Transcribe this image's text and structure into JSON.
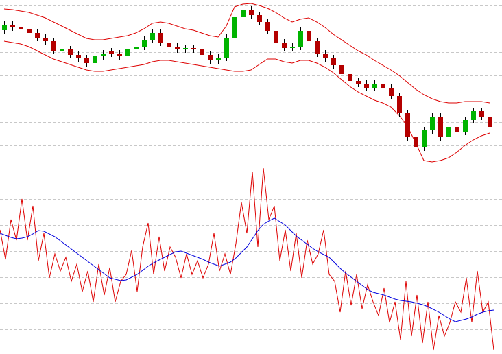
{
  "chart_data": [
    {
      "type": "candlestick",
      "ylim": [
        0,
        238
      ],
      "yticks": [
        230,
        196,
        162,
        128,
        94,
        60,
        26
      ],
      "grid": true,
      "up_color": "#00b400",
      "down_color": "#b40000",
      "ohlc": [
        [
          194,
          207,
          189,
          202
        ],
        [
          202,
          207,
          193,
          198
        ],
        [
          198,
          203,
          191,
          196
        ],
        [
          196,
          201,
          185,
          190
        ],
        [
          190,
          195,
          178,
          183
        ],
        [
          183,
          188,
          173,
          178
        ],
        [
          178,
          183,
          159,
          164
        ],
        [
          164,
          171,
          159,
          166
        ],
        [
          166,
          171,
          153,
          158
        ],
        [
          158,
          163,
          148,
          153
        ],
        [
          153,
          158,
          141,
          146
        ],
        [
          146,
          161,
          141,
          156
        ],
        [
          156,
          165,
          151,
          160
        ],
        [
          163,
          168,
          155,
          160
        ],
        [
          160,
          165,
          151,
          156
        ],
        [
          156,
          171,
          151,
          166
        ],
        [
          166,
          175,
          161,
          170
        ],
        [
          170,
          185,
          165,
          180
        ],
        [
          180,
          195,
          175,
          190
        ],
        [
          190,
          195,
          171,
          176
        ],
        [
          176,
          181,
          165,
          170
        ],
        [
          170,
          175,
          161,
          166
        ],
        [
          166,
          173,
          161,
          168
        ],
        [
          168,
          173,
          161,
          166
        ],
        [
          166,
          171,
          153,
          158
        ],
        [
          158,
          163,
          145,
          150
        ],
        [
          150,
          159,
          145,
          154
        ],
        [
          154,
          188,
          149,
          183
        ],
        [
          183,
          218,
          178,
          213
        ],
        [
          213,
          229,
          208,
          224
        ],
        [
          224,
          229,
          211,
          216
        ],
        [
          216,
          221,
          201,
          206
        ],
        [
          206,
          211,
          188,
          193
        ],
        [
          193,
          198,
          171,
          176
        ],
        [
          176,
          181,
          163,
          168
        ],
        [
          168,
          175,
          163,
          170
        ],
        [
          170,
          198,
          165,
          193
        ],
        [
          193,
          198,
          173,
          178
        ],
        [
          178,
          183,
          155,
          160
        ],
        [
          160,
          165,
          148,
          153
        ],
        [
          153,
          158,
          138,
          143
        ],
        [
          143,
          148,
          125,
          130
        ],
        [
          130,
          135,
          115,
          120
        ],
        [
          120,
          125,
          111,
          116
        ],
        [
          116,
          121,
          105,
          110
        ],
        [
          110,
          121,
          105,
          116
        ],
        [
          116,
          121,
          105,
          110
        ],
        [
          110,
          115,
          93,
          98
        ],
        [
          98,
          103,
          68,
          73
        ],
        [
          73,
          78,
          33,
          38
        ],
        [
          38,
          43,
          18,
          23
        ],
        [
          23,
          53,
          18,
          48
        ],
        [
          48,
          73,
          43,
          68
        ],
        [
          68,
          73,
          33,
          38
        ],
        [
          38,
          58,
          33,
          53
        ],
        [
          53,
          58,
          41,
          46
        ],
        [
          46,
          68,
          41,
          63
        ],
        [
          63,
          81,
          58,
          76
        ],
        [
          76,
          81,
          63,
          68
        ],
        [
          68,
          73,
          48,
          53
        ]
      ],
      "series": [
        {
          "color": "#dd0000",
          "values": [
            225,
            224,
            222,
            220,
            216,
            212,
            206,
            200,
            194,
            188,
            182,
            180,
            180,
            182,
            184,
            186,
            190,
            196,
            204,
            206,
            204,
            200,
            196,
            194,
            190,
            186,
            184,
            200,
            228,
            232,
            233,
            230,
            226,
            220,
            212,
            206,
            210,
            212,
            206,
            198,
            188,
            180,
            172,
            164,
            158,
            150,
            143,
            136,
            128,
            118,
            108,
            100,
            94,
            90,
            88,
            88,
            90,
            90,
            90,
            88
          ]
        },
        {
          "color": "#dd0000",
          "values": [
            178,
            176,
            174,
            170,
            164,
            158,
            152,
            148,
            144,
            140,
            136,
            134,
            134,
            136,
            138,
            140,
            142,
            144,
            148,
            150,
            150,
            148,
            146,
            144,
            142,
            140,
            138,
            136,
            134,
            134,
            136,
            144,
            152,
            152,
            148,
            146,
            150,
            150,
            146,
            140,
            132,
            122,
            112,
            104,
            98,
            92,
            88,
            82,
            70,
            54,
            30,
            4,
            2,
            4,
            8,
            16,
            26,
            34,
            40,
            44
          ]
        }
      ]
    },
    {
      "type": "line",
      "ylim": [
        0,
        276
      ],
      "yticks": [
        226,
        188,
        150,
        112,
        74,
        36
      ],
      "grid": true,
      "series": [
        {
          "color": "#dd0000",
          "values": [
            181,
            138,
            196,
            166,
            226,
            166,
            216,
            136,
            176,
            111,
            146,
            121,
            141,
            106,
            131,
            91,
            121,
            76,
            131,
            86,
            126,
            76,
            106,
            116,
            151,
            91,
            156,
            191,
            116,
            171,
            121,
            156,
            141,
            111,
            146,
            116,
            136,
            111,
            131,
            176,
            121,
            146,
            116,
            161,
            221,
            176,
            266,
            156,
            271,
            196,
            216,
            136,
            181,
            121,
            176,
            111,
            166,
            131,
            146,
            181,
            116,
            106,
            61,
            121,
            71,
            116,
            66,
            101,
            76,
            56,
            96,
            46,
            76,
            21,
            106,
            26,
            86,
            16,
            76,
            6,
            56,
            26,
            46,
            76,
            61,
            111,
            46,
            121,
            61,
            76,
            6
          ]
        },
        {
          "color": "#0000dd",
          "values": [
            176,
            173,
            170,
            168,
            169,
            171,
            175,
            180,
            179,
            175,
            171,
            165,
            159,
            153,
            147,
            141,
            135,
            129,
            123,
            117,
            111,
            109,
            107,
            108,
            112,
            116,
            122,
            128,
            133,
            137,
            141,
            145,
            149,
            150,
            147,
            144,
            141,
            138,
            134,
            131,
            128,
            131,
            134,
            140,
            148,
            156,
            168,
            180,
            189,
            194,
            198,
            193,
            188,
            180,
            172,
            166,
            160,
            154,
            149,
            145,
            141,
            133,
            125,
            118,
            112,
            106,
            100,
            94,
            90,
            88,
            86,
            83,
            80,
            78,
            77,
            76,
            74,
            72,
            69,
            65,
            61,
            56,
            51,
            47,
            49,
            51,
            54,
            58,
            61,
            63,
            64
          ]
        }
      ]
    }
  ]
}
